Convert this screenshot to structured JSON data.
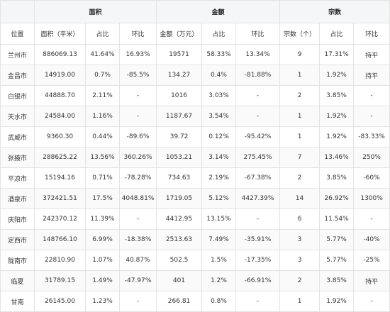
{
  "header": {
    "groups": [
      "面积",
      "金额",
      "宗数"
    ],
    "columns": [
      "位置",
      "面积（平米）",
      "占比",
      "环比",
      "金额（万元）",
      "占比",
      "环比",
      "宗数（个）",
      "占比",
      "环比"
    ]
  },
  "rows": [
    [
      "兰州市",
      "886069.13",
      "41.64%",
      "16.93%",
      "19571",
      "58.33%",
      "13.34%",
      "9",
      "17.31%",
      "持平"
    ],
    [
      "金昌市",
      "14919.00",
      "0.7%",
      "-85.5%",
      "134.27",
      "0.4%",
      "-81.88%",
      "1",
      "1.92%",
      "持平"
    ],
    [
      "白银市",
      "44888.70",
      "2.11%",
      "-",
      "1016",
      "3.03%",
      "-",
      "2",
      "3.85%",
      "-"
    ],
    [
      "天水市",
      "24584.00",
      "1.16%",
      "-",
      "1187.67",
      "3.54%",
      "-",
      "1",
      "1.92%",
      "-"
    ],
    [
      "武威市",
      "9360.30",
      "0.44%",
      "-89.6%",
      "39.72",
      "0.12%",
      "-95.42%",
      "1",
      "1.92%",
      "-83.33%"
    ],
    [
      "张掖市",
      "288625.22",
      "13.56%",
      "360.26%",
      "1053.21",
      "3.14%",
      "275.45%",
      "7",
      "13.46%",
      "250%"
    ],
    [
      "平凉市",
      "15194.16",
      "0.71%",
      "-78.28%",
      "734.63",
      "2.19%",
      "-67.38%",
      "2",
      "3.85%",
      "-60%"
    ],
    [
      "酒泉市",
      "372421.51",
      "17.5%",
      "4048.81%",
      "1719.05",
      "5.12%",
      "4427.39%",
      "14",
      "26.92%",
      "1300%"
    ],
    [
      "庆阳市",
      "242370.12",
      "11.39%",
      "-",
      "4412.95",
      "13.15%",
      "-",
      "6",
      "11.54%",
      "-"
    ],
    [
      "定西市",
      "148766.10",
      "6.99%",
      "-18.38%",
      "2513.63",
      "7.49%",
      "-35.91%",
      "3",
      "5.77%",
      "-40%"
    ],
    [
      "陇南市",
      "22810.90",
      "1.07%",
      "40.87%",
      "502.5",
      "1.5%",
      "-17.35%",
      "3",
      "5.77%",
      "-25%"
    ],
    [
      "临夏",
      "31789.15",
      "1.49%",
      "-47.97%",
      "401",
      "1.2%",
      "-66.91%",
      "2",
      "3.85%",
      "持平"
    ],
    [
      "甘南",
      "26145.00",
      "1.23%",
      "-",
      "266.81",
      "0.8%",
      "-",
      "1",
      "1.92%",
      "-"
    ]
  ]
}
